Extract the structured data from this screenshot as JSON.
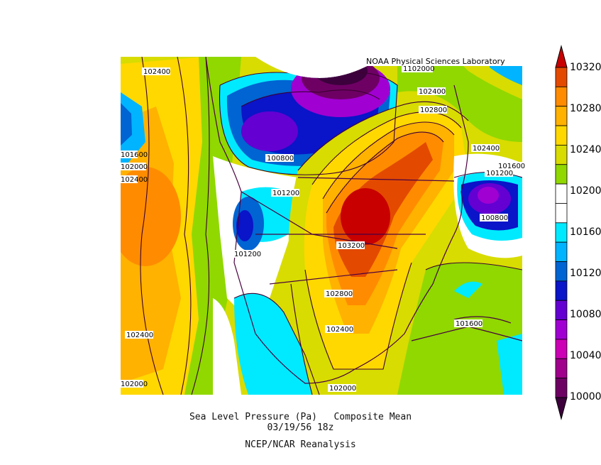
{
  "credit": "NOAA Physical Sciences Laboratory",
  "caption": {
    "line1": "Sea Level Pressure (Pa)   Composite Mean",
    "line2": "03/19/56 18z",
    "line3": "NCEP/NCAR Reanalysis"
  },
  "colorbar": {
    "ticks": [
      "10320",
      "10280",
      "10240",
      "10200",
      "10160",
      "10120",
      "10080",
      "10040",
      "10000"
    ],
    "colors_top_to_bottom": [
      "#c80000",
      "#e34a00",
      "#ff8c00",
      "#ffb200",
      "#ffd800",
      "#d8dc00",
      "#90d800",
      "#ffffff",
      "#ffffff",
      "#00eaff",
      "#00b4ff",
      "#0064d2",
      "#0a14c8",
      "#6400d2",
      "#a000d2",
      "#cc00b4",
      "#a0008c",
      "#6e0064",
      "#3c003c"
    ]
  },
  "contour_labels": [
    "102400",
    "1102000",
    "102400",
    "102800",
    "102400",
    "101600",
    "101200",
    "100800",
    "101600",
    "102000",
    "102400",
    "101200",
    "101200",
    "103200",
    "100800",
    "102800",
    "102400",
    "101600",
    "102400",
    "102000",
    "102000"
  ]
}
